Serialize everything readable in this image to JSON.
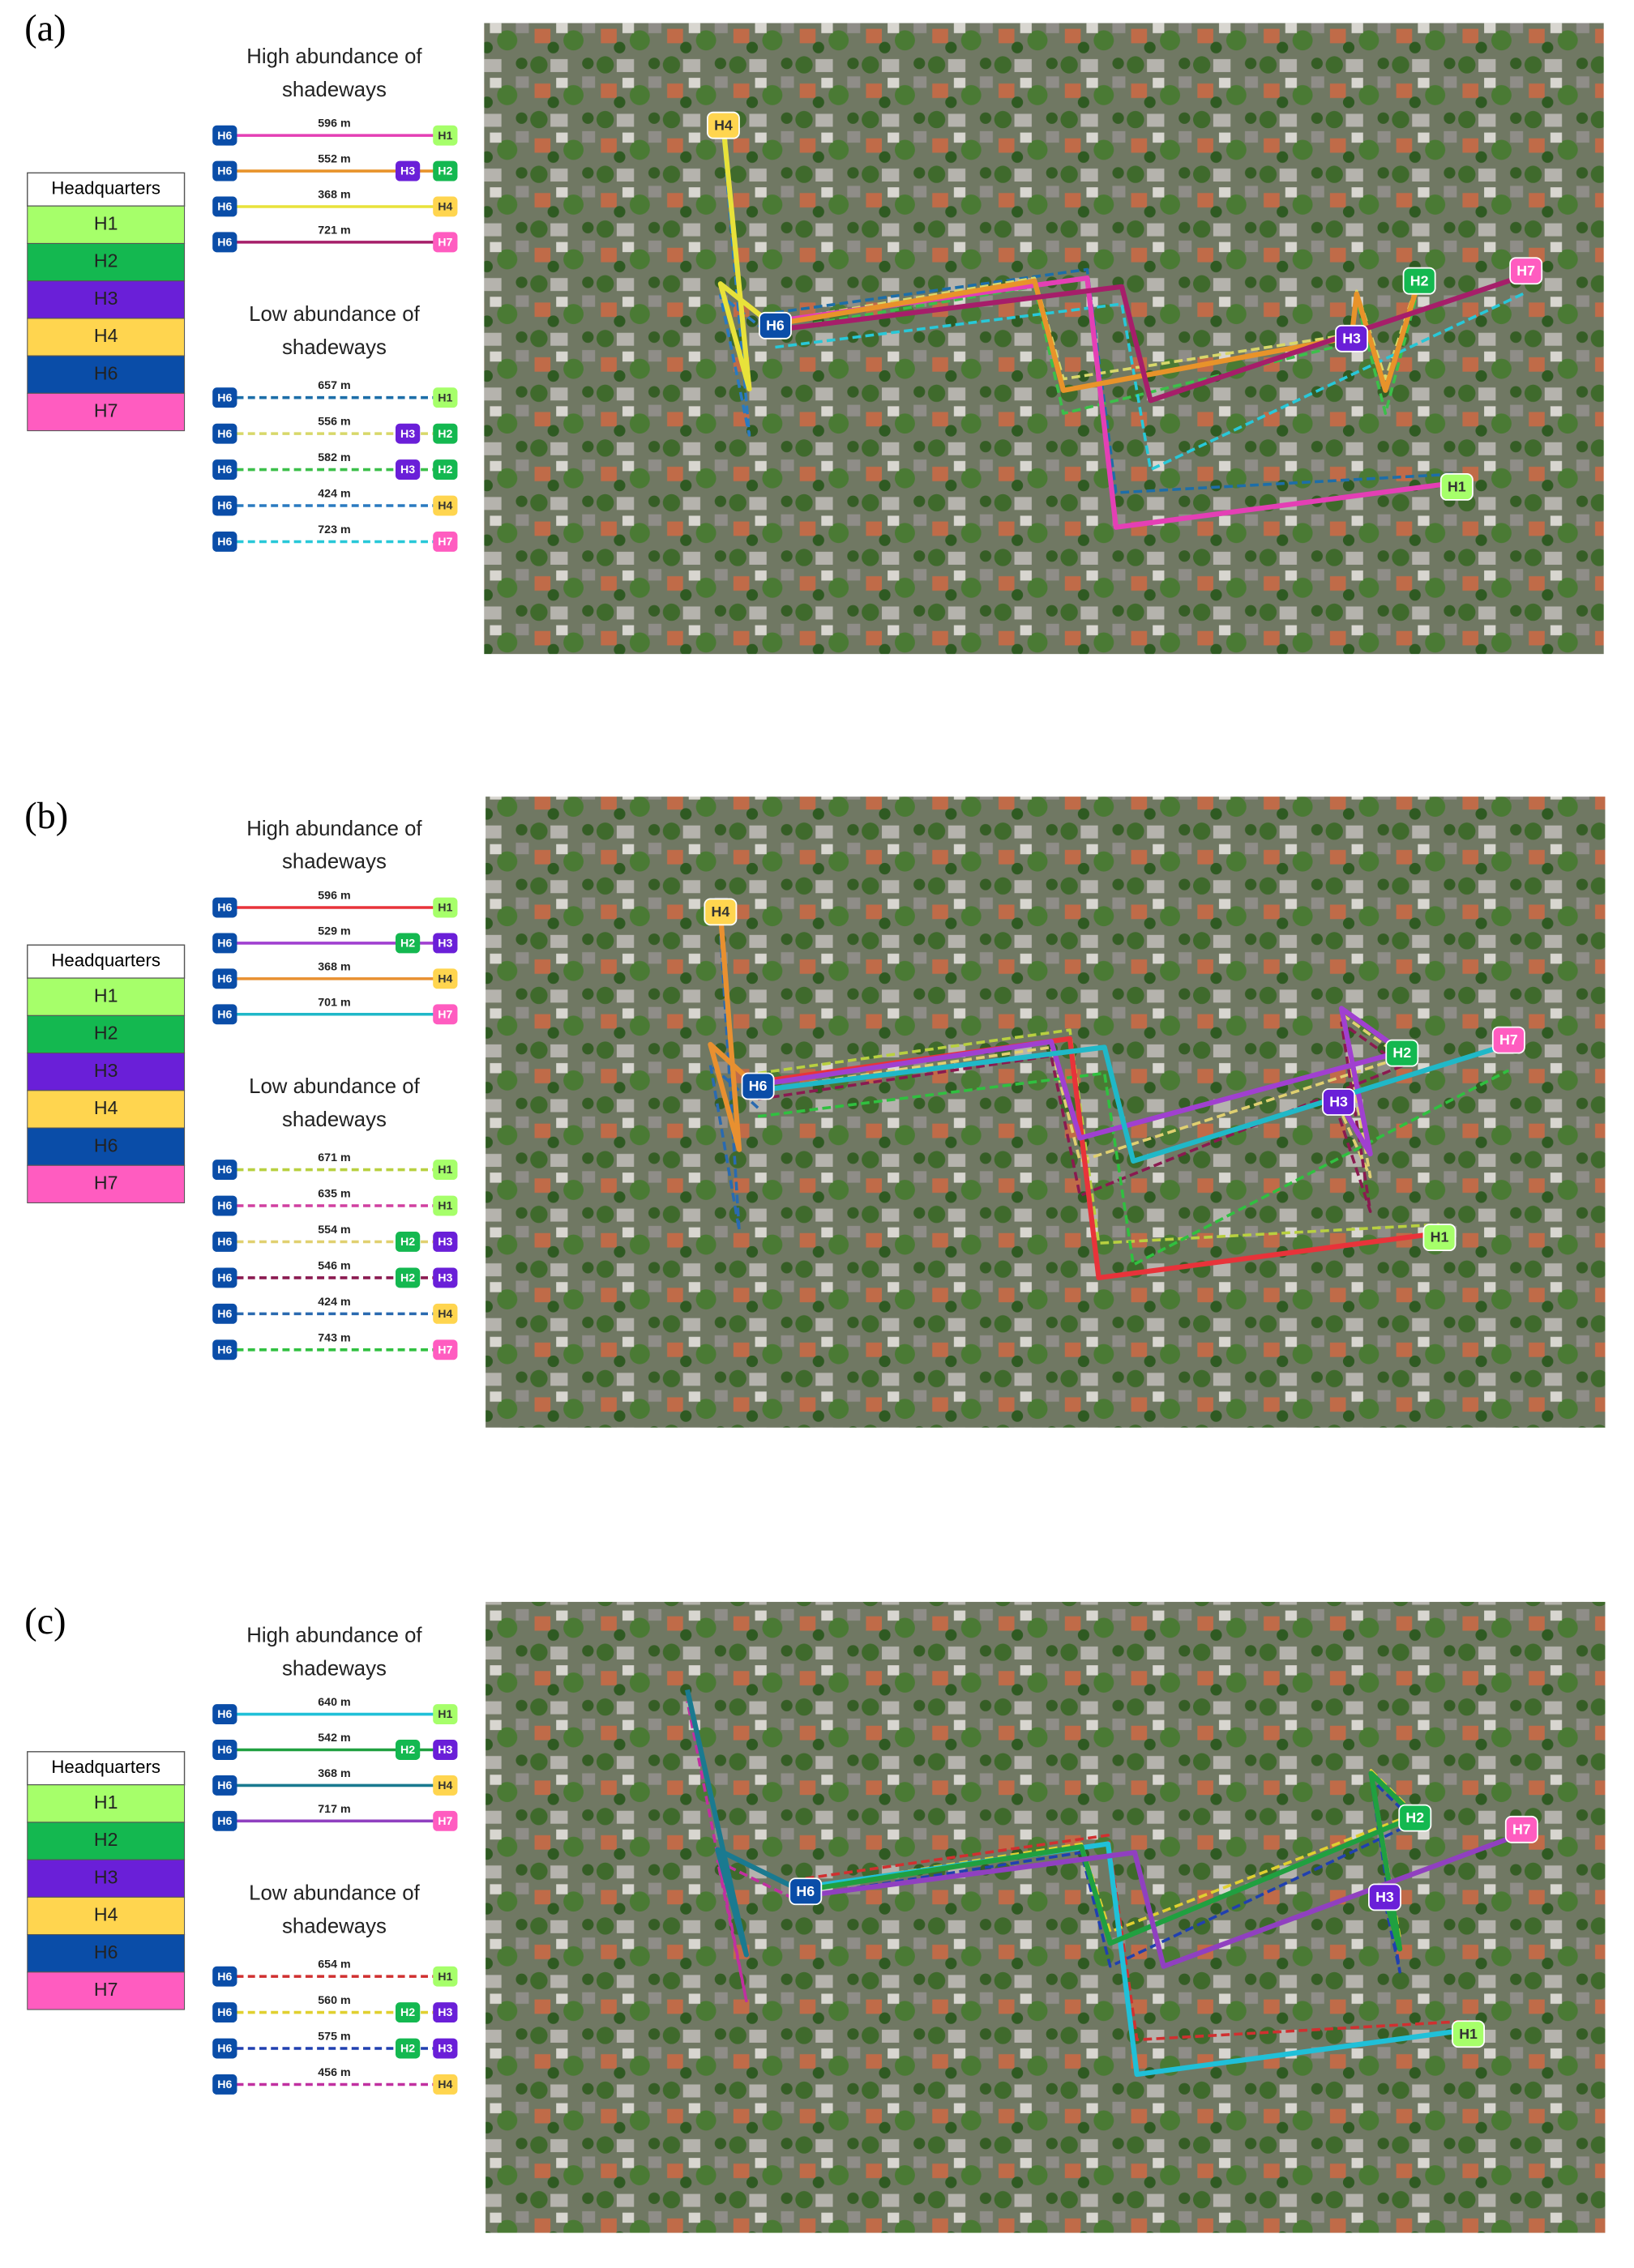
{
  "panels": [
    {
      "label": "(a)",
      "legend": {
        "title": "Headquarters",
        "items": [
          {
            "name": "H1",
            "color": "#a6ff6a"
          },
          {
            "name": "H2",
            "color": "#14b850"
          },
          {
            "name": "H3",
            "color": "#6a1fd8"
          },
          {
            "name": "H4",
            "color": "#ffd54f"
          },
          {
            "name": "H6",
            "color": "#0a4da8"
          },
          {
            "name": "H7",
            "color": "#ff5cc0"
          }
        ]
      },
      "high": {
        "title_lines": [
          "High  abundance of",
          "shadeways"
        ],
        "line_style": "solid",
        "routes": [
          {
            "distance": "596 m",
            "stops": [
              "H6",
              "H1"
            ],
            "color": "#e43fb5"
          },
          {
            "distance": "552 m",
            "stops": [
              "H6",
              "H3",
              "H2"
            ],
            "color": "#e8932a"
          },
          {
            "distance": "368 m",
            "stops": [
              "H6",
              "H4"
            ],
            "color": "#e8e23a"
          },
          {
            "distance": "721 m",
            "stops": [
              "H6",
              "H7"
            ],
            "color": "#a61e6a"
          }
        ]
      },
      "low": {
        "title_lines": [
          "Low abundance of",
          "shadeways"
        ],
        "line_style": "dashed",
        "routes": [
          {
            "distance": "657 m",
            "stops": [
              "H6",
              "H1"
            ],
            "color": "#1d6ea8"
          },
          {
            "distance": "556 m",
            "stops": [
              "H6",
              "H3",
              "H2"
            ],
            "color": "#d8d86a"
          },
          {
            "distance": "582 m",
            "stops": [
              "H6",
              "H3",
              "H2"
            ],
            "color": "#3cbf4a"
          },
          {
            "distance": "424 m",
            "stops": [
              "H6",
              "H4"
            ],
            "color": "#2a7ac0"
          },
          {
            "distance": "723 m",
            "stops": [
              "H6",
              "H7"
            ],
            "color": "#28c8d8"
          }
        ]
      },
      "map_markers": [
        "H4",
        "H6",
        "H2",
        "H7",
        "H3",
        "H1"
      ]
    },
    {
      "label": "(b)",
      "legend": {
        "title": "Headquarters",
        "items": [
          {
            "name": "H1",
            "color": "#a6ff6a"
          },
          {
            "name": "H2",
            "color": "#14b850"
          },
          {
            "name": "H3",
            "color": "#6a1fd8"
          },
          {
            "name": "H4",
            "color": "#ffd54f"
          },
          {
            "name": "H6",
            "color": "#0a4da8"
          },
          {
            "name": "H7",
            "color": "#ff5cc0"
          }
        ]
      },
      "high": {
        "title_lines": [
          "High  abundance of",
          "shadeways"
        ],
        "line_style": "solid",
        "routes": [
          {
            "distance": "596 m",
            "stops": [
              "H6",
              "H1"
            ],
            "color": "#e8333a"
          },
          {
            "distance": "529 m",
            "stops": [
              "H6",
              "H2",
              "H3"
            ],
            "color": "#a040d0"
          },
          {
            "distance": "368 m",
            "stops": [
              "H6",
              "H4"
            ],
            "color": "#e89030"
          },
          {
            "distance": "701 m",
            "stops": [
              "H6",
              "H7"
            ],
            "color": "#20b8c8"
          }
        ]
      },
      "low": {
        "title_lines": [
          "Low abundance of",
          "shadeways"
        ],
        "line_style": "dashed",
        "routes": [
          {
            "distance": "671 m",
            "stops": [
              "H6",
              "H1"
            ],
            "color": "#b8d040"
          },
          {
            "distance": "635 m",
            "stops": [
              "H6",
              "H1"
            ],
            "color": "#d040a0"
          },
          {
            "distance": "554 m",
            "stops": [
              "H6",
              "H2",
              "H3"
            ],
            "color": "#e0d070"
          },
          {
            "distance": "546 m",
            "stops": [
              "H6",
              "H2",
              "H3"
            ],
            "color": "#8a1a50"
          },
          {
            "distance": "424 m",
            "stops": [
              "H6",
              "H4"
            ],
            "color": "#2a6ab0"
          },
          {
            "distance": "743 m",
            "stops": [
              "H6",
              "H7"
            ],
            "color": "#30c040"
          }
        ]
      },
      "map_markers": [
        "H4",
        "H6",
        "H2",
        "H7",
        "H3",
        "H1"
      ]
    },
    {
      "label": "(c)",
      "legend": {
        "title": "Headquarters",
        "items": [
          {
            "name": "H1",
            "color": "#a6ff6a"
          },
          {
            "name": "H2",
            "color": "#14b850"
          },
          {
            "name": "H3",
            "color": "#6a1fd8"
          },
          {
            "name": "H4",
            "color": "#ffd54f"
          },
          {
            "name": "H6",
            "color": "#0a4da8"
          },
          {
            "name": "H7",
            "color": "#ff5cc0"
          }
        ]
      },
      "high": {
        "title_lines": [
          "High  abundance of",
          "shadeways"
        ],
        "line_style": "solid",
        "routes": [
          {
            "distance": "640 m",
            "stops": [
              "H6",
              "H1"
            ],
            "color": "#20c0d8"
          },
          {
            "distance": "542 m",
            "stops": [
              "H6",
              "H2",
              "H3"
            ],
            "color": "#20a040"
          },
          {
            "distance": "368 m",
            "stops": [
              "H6",
              "H4"
            ],
            "color": "#1a7a90"
          },
          {
            "distance": "717 m",
            "stops": [
              "H6",
              "H7"
            ],
            "color": "#9040c0"
          }
        ]
      },
      "low": {
        "title_lines": [
          "Low abundance of",
          "shadeways"
        ],
        "line_style": "dashed",
        "routes": [
          {
            "distance": "654 m",
            "stops": [
              "H6",
              "H1"
            ],
            "color": "#d03030"
          },
          {
            "distance": "560 m",
            "stops": [
              "H6",
              "H2",
              "H3"
            ],
            "color": "#e0d030"
          },
          {
            "distance": "575 m",
            "stops": [
              "H6",
              "H2",
              "H3"
            ],
            "color": "#2040b0"
          },
          {
            "distance": "456 m",
            "stops": [
              "H6",
              "H4"
            ],
            "color": "#c030a0"
          }
        ]
      },
      "map_markers": [
        "H6",
        "H2",
        "H7",
        "H3",
        "H1"
      ]
    }
  ]
}
